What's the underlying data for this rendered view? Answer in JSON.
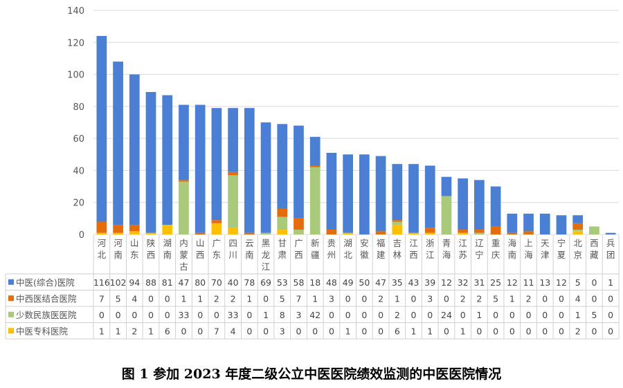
{
  "chart_data": {
    "type": "bar",
    "stacked": true,
    "title": "图 1 参加 2023 年度二级公立中医医院绩效监测的中医医院情况",
    "ylim": [
      0,
      140
    ],
    "yticks": [
      0,
      20,
      40,
      60,
      80,
      100,
      120,
      140
    ],
    "grid": true,
    "legend": "table-left",
    "categories": [
      "河北",
      "河南",
      "山东",
      "陕西",
      "湖南",
      "内蒙古",
      "山西",
      "广东",
      "四川",
      "云南",
      "黑龙江",
      "甘肃",
      "广西",
      "新疆",
      "贵州",
      "湖北",
      "安徽",
      "福建",
      "吉林",
      "江西",
      "浙江",
      "青海",
      "江苏",
      "辽宁",
      "重庆",
      "海南",
      "上海",
      "天津",
      "宁夏",
      "北京",
      "西藏",
      "兵团"
    ],
    "series": [
      {
        "name": "中医(综合)医院",
        "color": "#4a7fd3",
        "values": [
          116,
          102,
          94,
          88,
          81,
          47,
          80,
          70,
          40,
          78,
          69,
          53,
          58,
          18,
          48,
          49,
          50,
          47,
          35,
          43,
          39,
          12,
          32,
          31,
          25,
          12,
          11,
          13,
          12,
          5,
          0,
          1
        ]
      },
      {
        "name": "中西医结合医院",
        "color": "#e46c0a",
        "values": [
          7,
          5,
          4,
          0,
          0,
          1,
          1,
          2,
          2,
          1,
          0,
          5,
          7,
          1,
          3,
          0,
          0,
          2,
          1,
          0,
          3,
          0,
          2,
          2,
          5,
          1,
          2,
          0,
          0,
          4,
          0,
          0
        ]
      },
      {
        "name": "少数民族医医院",
        "color": "#a9c97b",
        "values": [
          0,
          0,
          0,
          0,
          0,
          33,
          0,
          0,
          33,
          0,
          1,
          8,
          3,
          42,
          0,
          0,
          0,
          0,
          2,
          0,
          0,
          24,
          0,
          1,
          0,
          0,
          0,
          0,
          0,
          1,
          5,
          0
        ]
      },
      {
        "name": "中医专科医院",
        "color": "#ffc000",
        "values": [
          1,
          1,
          2,
          1,
          6,
          0,
          0,
          7,
          4,
          0,
          0,
          3,
          0,
          0,
          0,
          1,
          0,
          0,
          6,
          1,
          1,
          0,
          1,
          0,
          0,
          0,
          0,
          0,
          0,
          2,
          0,
          0
        ]
      }
    ],
    "stack_order_bottom_to_top": [
      3,
      2,
      1,
      0
    ]
  }
}
